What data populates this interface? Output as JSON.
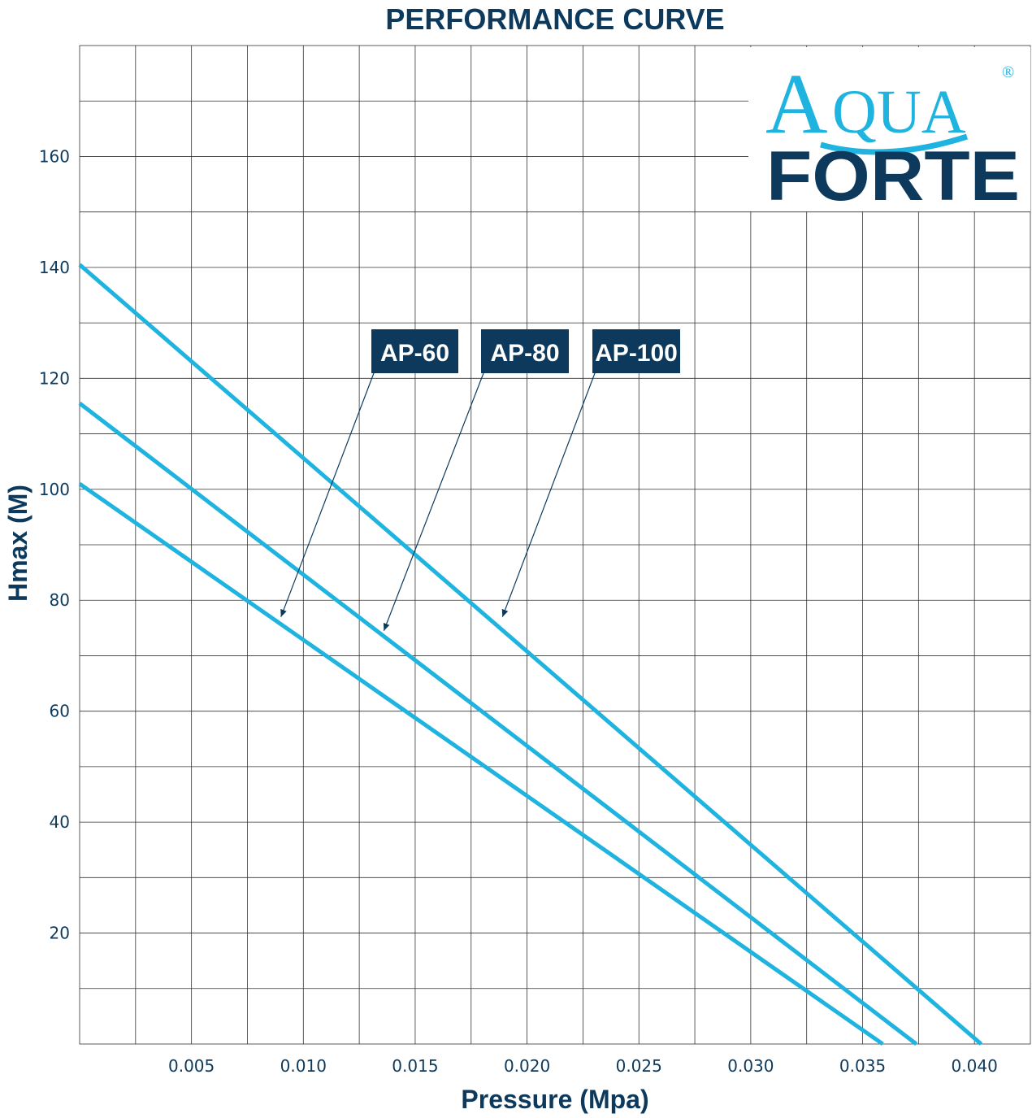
{
  "chart_data": {
    "type": "line",
    "title": "PERFORMANCE CURVE",
    "xlabel": "Pressure (Mpa)",
    "ylabel": "Hmax (M)",
    "xlim": [
      0,
      0.0425
    ],
    "ylim": [
      0,
      180
    ],
    "x_ticks": [
      "0.005",
      "0.010",
      "0.015",
      "0.020",
      "0.025",
      "0.030",
      "0.035",
      "0.040"
    ],
    "x_tick_values": [
      0.005,
      0.01,
      0.015,
      0.02,
      0.025,
      0.03,
      0.035,
      0.04
    ],
    "y_ticks": [
      "20",
      "40",
      "60",
      "80",
      "100",
      "120",
      "140",
      "160"
    ],
    "y_tick_values": [
      20,
      40,
      60,
      80,
      100,
      120,
      140,
      160
    ],
    "grid": true,
    "series": [
      {
        "name": "AP-60",
        "x": [
          0,
          0.0359
        ],
        "y": [
          101,
          0
        ]
      },
      {
        "name": "AP-80",
        "x": [
          0,
          0.0374
        ],
        "y": [
          115.5,
          0
        ]
      },
      {
        "name": "AP-100",
        "x": [
          0,
          0.0403
        ],
        "y": [
          140.5,
          0
        ]
      }
    ],
    "callouts": [
      {
        "series": "AP-60",
        "arrow_target": [
          0.009,
          77
        ]
      },
      {
        "series": "AP-80",
        "arrow_target": [
          0.0136,
          74.5
        ]
      },
      {
        "series": "AP-100",
        "arrow_target": [
          0.0189,
          77
        ]
      }
    ]
  },
  "logo": {
    "line1": "AQUA",
    "line2": "FORTE",
    "registered": "®"
  },
  "colors": {
    "series": "#1fb3e0",
    "text": "#0d3a5c",
    "grid": "#333333"
  }
}
